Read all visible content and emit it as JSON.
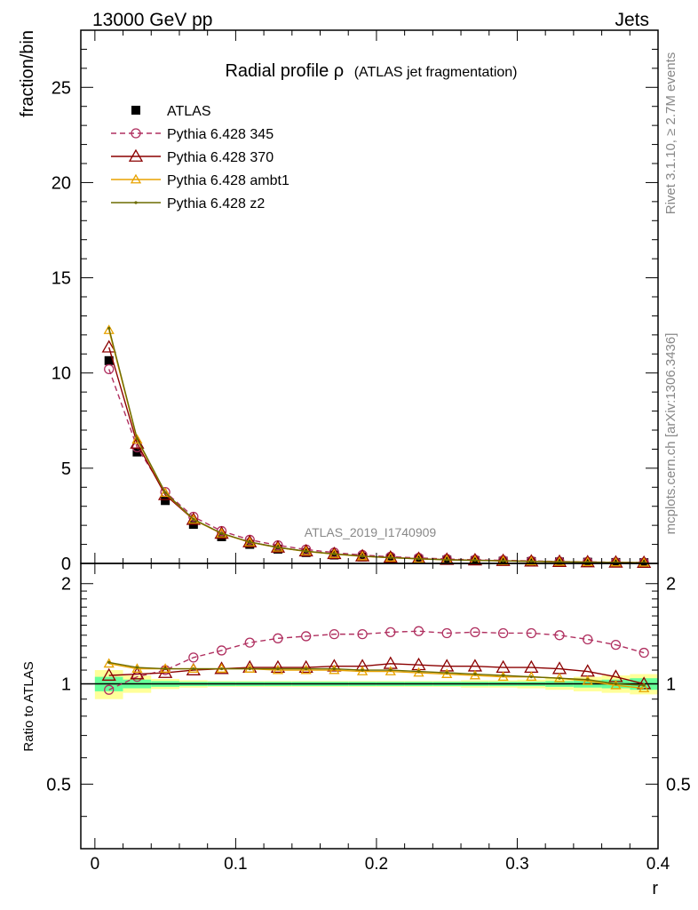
{
  "header": {
    "left": "13000 GeV pp",
    "right": "Jets"
  },
  "side_labels": {
    "rivet": "Rivet 3.1.10, ≥ 2.7M events",
    "mcplots": "mcplots.cern.ch [arXiv:1306.3436]"
  },
  "watermark": "ATLAS_2019_I1740909",
  "chart_data": {
    "type": "line",
    "title": "Radial profile ρ",
    "title_suffix": "(ATLAS jet fragmentation)",
    "xlabel": "r",
    "ylabel": "fraction/bin",
    "ratio_ylabel": "Ratio to ATLAS",
    "xlim": [
      -0.01,
      0.4
    ],
    "ylim": [
      0,
      28
    ],
    "ratio_ylim": [
      0.32,
      2.3
    ],
    "ratio_scale": "log",
    "x_ticks": [
      "0",
      "0.1",
      "0.2",
      "0.3",
      "0.4"
    ],
    "y_ticks": [
      "0",
      "5",
      "10",
      "15",
      "20",
      "25"
    ],
    "ratio_ticks": [
      "0.5",
      "1",
      "2"
    ],
    "legend_position": "top-left",
    "x": [
      0.01,
      0.03,
      0.05,
      0.07,
      0.09,
      0.11,
      0.13,
      0.15,
      0.17,
      0.19,
      0.21,
      0.23,
      0.25,
      0.27,
      0.29,
      0.31,
      0.33,
      0.35,
      0.37,
      0.39
    ],
    "series": [
      {
        "name": "ATLAS",
        "color": "#000000",
        "values": [
          10.65,
          5.85,
          3.3,
          2.05,
          1.4,
          1.0,
          0.75,
          0.57,
          0.44,
          0.34,
          0.27,
          0.22,
          0.18,
          0.15,
          0.12,
          0.1,
          0.08,
          0.065,
          0.05,
          0.04
        ]
      },
      {
        "name": "Pythia 6.428 345",
        "color": "#b03060",
        "values": [
          10.2,
          6.1,
          3.75,
          2.45,
          1.7,
          1.24,
          0.95,
          0.73,
          0.57,
          0.44,
          0.35,
          0.29,
          0.23,
          0.19,
          0.16,
          0.13,
          0.1,
          0.08,
          0.06,
          0.045
        ],
        "ratio": [
          0.96,
          1.05,
          1.1,
          1.2,
          1.26,
          1.33,
          1.37,
          1.39,
          1.41,
          1.41,
          1.43,
          1.44,
          1.42,
          1.43,
          1.42,
          1.42,
          1.4,
          1.36,
          1.31,
          1.24
        ]
      },
      {
        "name": "Pythia 6.428 370",
        "color": "#8b0000",
        "values": [
          11.35,
          6.3,
          3.6,
          2.3,
          1.57,
          1.12,
          0.84,
          0.64,
          0.5,
          0.38,
          0.31,
          0.25,
          0.2,
          0.17,
          0.14,
          0.11,
          0.09,
          0.07,
          0.053,
          0.04
        ],
        "ratio": [
          1.06,
          1.07,
          1.08,
          1.1,
          1.11,
          1.12,
          1.12,
          1.12,
          1.13,
          1.13,
          1.15,
          1.14,
          1.13,
          1.13,
          1.12,
          1.12,
          1.11,
          1.09,
          1.05,
          1.0
        ]
      },
      {
        "name": "Pythia 6.428 ambt1",
        "color": "#e8a200",
        "values": [
          12.25,
          6.5,
          3.7,
          2.3,
          1.57,
          1.11,
          0.83,
          0.63,
          0.49,
          0.37,
          0.3,
          0.24,
          0.19,
          0.16,
          0.13,
          0.105,
          0.085,
          0.066,
          0.05,
          0.039
        ],
        "ratio": [
          1.15,
          1.11,
          1.11,
          1.11,
          1.11,
          1.11,
          1.1,
          1.1,
          1.1,
          1.09,
          1.09,
          1.08,
          1.07,
          1.06,
          1.05,
          1.05,
          1.04,
          1.02,
          0.99,
          0.97
        ]
      },
      {
        "name": "Pythia 6.428 z2",
        "color": "#6b6b00",
        "values": [
          12.35,
          6.55,
          3.72,
          2.32,
          1.58,
          1.12,
          0.84,
          0.64,
          0.5,
          0.38,
          0.3,
          0.24,
          0.19,
          0.16,
          0.13,
          0.106,
          0.086,
          0.067,
          0.05,
          0.04
        ],
        "ratio": [
          1.16,
          1.12,
          1.11,
          1.11,
          1.11,
          1.11,
          1.11,
          1.11,
          1.11,
          1.1,
          1.1,
          1.09,
          1.08,
          1.07,
          1.06,
          1.05,
          1.04,
          1.03,
          1.0,
          0.99
        ]
      }
    ],
    "ratio_band": {
      "inner_color": "#66ff99",
      "outer_color": "#ffff99",
      "inner_halfwidth": [
        0.05,
        0.03,
        0.02,
        0.015,
        0.015,
        0.015,
        0.015,
        0.015,
        0.015,
        0.015,
        0.015,
        0.015,
        0.015,
        0.015,
        0.015,
        0.015,
        0.02,
        0.025,
        0.03,
        0.04
      ],
      "outer_halfwidth": [
        0.1,
        0.06,
        0.035,
        0.025,
        0.02,
        0.02,
        0.02,
        0.02,
        0.02,
        0.02,
        0.02,
        0.02,
        0.02,
        0.025,
        0.025,
        0.03,
        0.04,
        0.05,
        0.06,
        0.07
      ]
    }
  }
}
